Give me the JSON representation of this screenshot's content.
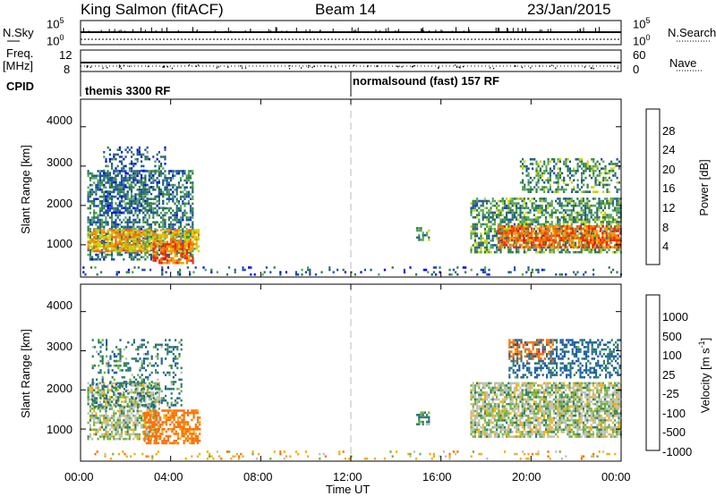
{
  "header": {
    "station": "King Salmon (fitACF)",
    "beam": "Beam 14",
    "date": "23/Jan/2015"
  },
  "left_labels": {
    "nsky": "N.Sky",
    "freq_line1": "Freq.",
    "freq_line2": "[MHz]",
    "cpid": "CPID"
  },
  "right_labels": {
    "nsearch": "N.Search",
    "nave": "Nave"
  },
  "noise_panel": {
    "left_ticks": [
      "10^5",
      "10^0"
    ],
    "right_ticks": [
      "10^5",
      "10^0"
    ]
  },
  "freq_panel": {
    "left_ticks": [
      "12",
      "8"
    ],
    "right_ticks": [
      "60",
      "0"
    ]
  },
  "cpid_panel": {
    "segments": [
      {
        "label": "themis 3300 RF",
        "start": 0.0,
        "end": 12.0
      },
      {
        "label": "normalsound (fast) 157 RF",
        "start": 12.0,
        "end": 24.0
      }
    ]
  },
  "colors": {
    "power_scale": [
      "#0000ff",
      "#1b4fa8",
      "#2f7a4a",
      "#55a35a",
      "#c8d400",
      "#f0a000",
      "#ff6a00",
      "#ee2a00",
      "#ff0000"
    ],
    "velocity_scale": [
      "#2020d0",
      "#1f5fa0",
      "#2f8060",
      "#70b040",
      "#c0c0b8",
      "#f0b000",
      "#ff7000",
      "#f03000",
      "#ff0000"
    ],
    "ground_scatter": "#c0c0b8"
  },
  "chart_data": [
    {
      "type": "heatmap",
      "title": "",
      "xlabel": "Time UT",
      "ylabel": "Slant Range [km]",
      "xlim": [
        0,
        24
      ],
      "ylim": [
        180,
        4700
      ],
      "x_ticks": [
        "00:00",
        "04:00",
        "08:00",
        "12:00",
        "16:00",
        "20:00",
        "00:00"
      ],
      "y_ticks": [
        1000,
        2000,
        3000,
        4000
      ],
      "colorbar": {
        "label": "Power [dB]",
        "ticks": [
          4,
          8,
          12,
          16,
          20,
          24,
          28
        ],
        "range": [
          0,
          30
        ]
      },
      "regions": [
        {
          "t0": 0.3,
          "t1": 5.0,
          "r0": 600,
          "r1": 2900,
          "level": 8,
          "density": 0.55
        },
        {
          "t0": 0.3,
          "t1": 5.3,
          "r0": 800,
          "r1": 1400,
          "level": 18,
          "density": 0.75
        },
        {
          "t0": 3.2,
          "t1": 5.0,
          "r0": 500,
          "r1": 1100,
          "level": 22,
          "density": 0.6
        },
        {
          "t0": 1.0,
          "t1": 3.8,
          "r0": 1800,
          "r1": 3500,
          "level": 6,
          "density": 0.3
        },
        {
          "t0": 14.9,
          "t1": 15.5,
          "r0": 1100,
          "r1": 1450,
          "level": 10,
          "density": 0.5
        },
        {
          "t0": 17.3,
          "t1": 24.0,
          "r0": 800,
          "r1": 2200,
          "level": 10,
          "density": 0.6
        },
        {
          "t0": 18.5,
          "t1": 24.0,
          "r0": 900,
          "r1": 1500,
          "level": 22,
          "density": 0.7
        },
        {
          "t0": 19.5,
          "t1": 24.0,
          "r0": 2300,
          "r1": 3200,
          "level": 10,
          "density": 0.45
        },
        {
          "t0": 0.0,
          "t1": 24.0,
          "r0": 200,
          "r1": 450,
          "level": 6,
          "density": 0.12
        }
      ]
    },
    {
      "type": "heatmap",
      "title": "",
      "xlabel": "Time UT",
      "ylabel": "Slant Range [km]",
      "xlim": [
        0,
        24
      ],
      "ylim": [
        180,
        4700
      ],
      "x_ticks": [
        "00:00",
        "04:00",
        "08:00",
        "12:00",
        "16:00",
        "20:00",
        "00:00"
      ],
      "y_ticks": [
        1000,
        2000,
        3000,
        4000
      ],
      "colorbar": {
        "label": "Velocity [m s^-1]",
        "ticks": [
          "1000",
          "500",
          "100",
          "25",
          "-25",
          "-100",
          "-500",
          "-1000"
        ]
      },
      "regions": [
        {
          "t0": 0.3,
          "t1": 3.5,
          "r0": 700,
          "r1": 2200,
          "level": 0,
          "density": 0.65
        },
        {
          "t0": 2.8,
          "t1": 5.3,
          "r0": 600,
          "r1": 1500,
          "level": -250,
          "density": 0.6
        },
        {
          "t0": 0.5,
          "t1": 4.5,
          "r0": 1500,
          "r1": 3300,
          "level": 80,
          "density": 0.25
        },
        {
          "t0": 14.9,
          "t1": 15.5,
          "r0": 1100,
          "r1": 1450,
          "level": 60,
          "density": 0.5
        },
        {
          "t0": 17.3,
          "t1": 24.0,
          "r0": 800,
          "r1": 2200,
          "level": 0,
          "density": 0.75
        },
        {
          "t0": 19.0,
          "t1": 24.0,
          "r0": 2300,
          "r1": 3300,
          "level": 150,
          "density": 0.45
        },
        {
          "t0": 19.0,
          "t1": 21.0,
          "r0": 2700,
          "r1": 3300,
          "level": -300,
          "density": 0.35
        },
        {
          "t0": 0.0,
          "t1": 24.0,
          "r0": 200,
          "r1": 450,
          "level": -50,
          "density": 0.12
        }
      ]
    }
  ]
}
